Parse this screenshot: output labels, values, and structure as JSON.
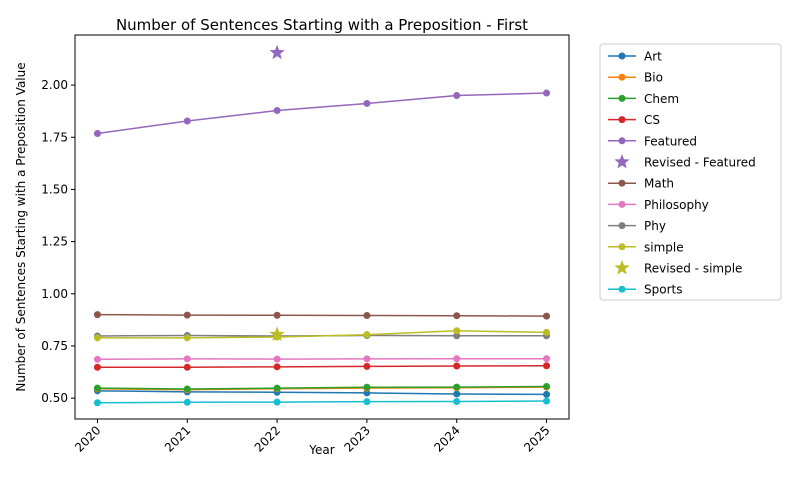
{
  "chart_data": {
    "type": "line",
    "title": "Number of Sentences Starting with a Preposition - First",
    "xlabel": "Year",
    "ylabel": "Number of Sentences Starting with a Preposition Value",
    "x": [
      "2020",
      "2021",
      "2022",
      "2023",
      "2024",
      "2025"
    ],
    "xlim": [
      2019.75,
      2025.25
    ],
    "ylim": [
      0.4,
      2.24
    ],
    "yticks": [
      0.5,
      0.75,
      1.0,
      1.25,
      1.5,
      1.75,
      2.0
    ],
    "ytick_labels": [
      "0.50",
      "0.75",
      "1.00",
      "1.25",
      "1.50",
      "1.75",
      "2.00"
    ],
    "grid": false,
    "legend_position": "outside-right",
    "series": [
      {
        "name": "Art",
        "color": "#1f77b4",
        "marker": "circle",
        "values": [
          0.535,
          0.53,
          0.528,
          0.525,
          0.52,
          0.518
        ]
      },
      {
        "name": "Bio",
        "color": "#ff7f0e",
        "marker": "circle",
        "values": [
          0.545,
          0.54,
          0.545,
          0.548,
          0.55,
          0.553
        ]
      },
      {
        "name": "Chem",
        "color": "#2ca02c",
        "marker": "circle",
        "values": [
          0.548,
          0.544,
          0.548,
          0.552,
          0.553,
          0.556
        ]
      },
      {
        "name": "CS",
        "color": "#d62728",
        "marker": "circle",
        "values": [
          0.648,
          0.648,
          0.65,
          0.652,
          0.654,
          0.655
        ]
      },
      {
        "name": "Featured",
        "color": "#9467bd",
        "marker": "circle",
        "values": [
          1.768,
          1.828,
          1.878,
          1.912,
          1.95,
          1.962
        ]
      },
      {
        "name": "Revised - Featured",
        "color": "#9467bd",
        "marker": "star",
        "points": [
          {
            "x": "2022",
            "y": 2.155
          }
        ]
      },
      {
        "name": "Math",
        "color": "#8c564b",
        "marker": "circle",
        "values": [
          0.9,
          0.898,
          0.897,
          0.896,
          0.895,
          0.893
        ]
      },
      {
        "name": "Philosophy",
        "color": "#e377c2",
        "marker": "circle",
        "values": [
          0.686,
          0.688,
          0.687,
          0.688,
          0.689,
          0.689
        ]
      },
      {
        "name": "Phy",
        "color": "#7f7f7f",
        "marker": "circle",
        "values": [
          0.798,
          0.8,
          0.798,
          0.8,
          0.799,
          0.799
        ]
      },
      {
        "name": "simple",
        "color": "#bcbd22",
        "marker": "circle",
        "values": [
          0.789,
          0.789,
          0.793,
          0.804,
          0.823,
          0.815
        ]
      },
      {
        "name": "Revised - simple",
        "color": "#bcbd22",
        "marker": "star",
        "points": [
          {
            "x": "2022",
            "y": 0.805
          }
        ]
      },
      {
        "name": "Sports",
        "color": "#17becf",
        "marker": "circle",
        "values": [
          0.478,
          0.48,
          0.481,
          0.483,
          0.484,
          0.486
        ]
      }
    ]
  }
}
